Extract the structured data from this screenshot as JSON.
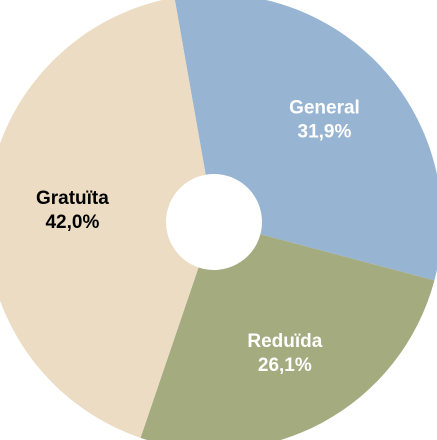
{
  "chart_data": {
    "type": "pie",
    "categories": [
      "General",
      "Reduïda",
      "Gratuïta"
    ],
    "values": [
      31.9,
      26.1,
      42.0
    ],
    "value_labels": [
      "31,9%",
      "26,1%",
      "42,0%"
    ],
    "colors": [
      "#97b5d3",
      "#a3ab7f",
      "#ecdcc4"
    ],
    "label_colors": [
      "#ffffff",
      "#ffffff",
      "#000000"
    ]
  }
}
